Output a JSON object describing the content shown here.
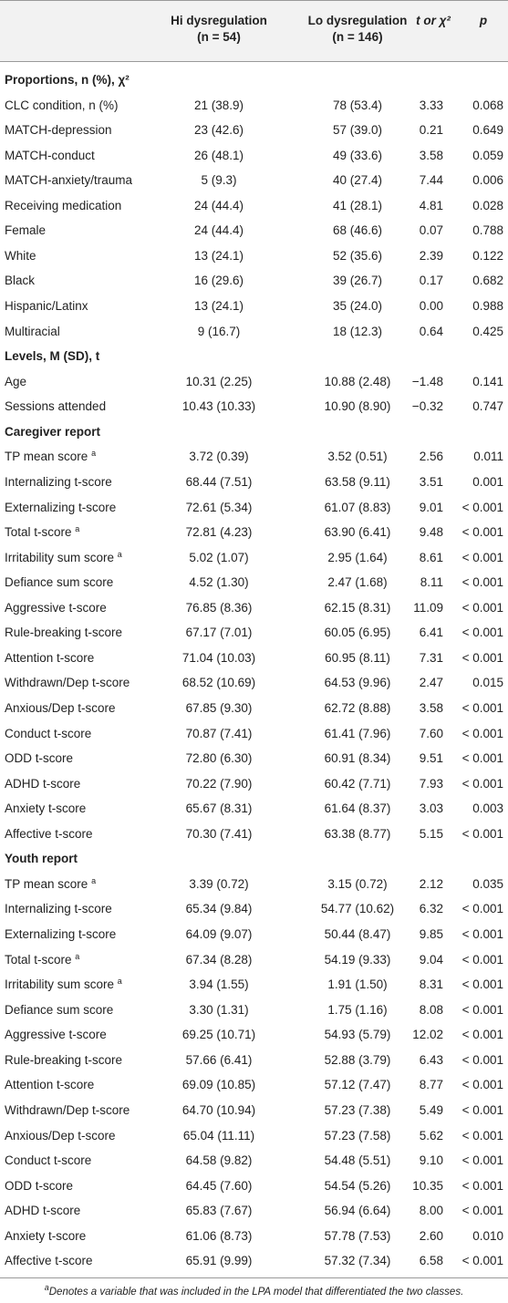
{
  "table": {
    "header": {
      "hi": {
        "line1": "Hi dysregulation",
        "line2": "(n = 54)"
      },
      "lo": {
        "line1": "Lo dysregulation",
        "line2": "(n = 146)"
      },
      "stat": "t or χ²",
      "p": "p"
    },
    "sections": [
      {
        "title": "Proportions, n (%), χ²",
        "rows": [
          {
            "label": "CLC condition, n (%)",
            "hi": "21 (38.9)",
            "lo": "78 (53.4)",
            "stat": "3.33",
            "p": "0.068"
          },
          {
            "label": "MATCH-depression",
            "hi": "23 (42.6)",
            "lo": "57 (39.0)",
            "stat": "0.21",
            "p": "0.649"
          },
          {
            "label": "MATCH-conduct",
            "hi": "26 (48.1)",
            "lo": "49 (33.6)",
            "stat": "3.58",
            "p": "0.059"
          },
          {
            "label": "MATCH-anxiety/trauma",
            "hi": "5 (9.3)",
            "lo": "40 (27.4)",
            "stat": "7.44",
            "p": "0.006"
          },
          {
            "label": "Receiving medication",
            "hi": "24 (44.4)",
            "lo": "41 (28.1)",
            "stat": "4.81",
            "p": "0.028"
          },
          {
            "label": "Female",
            "hi": "24 (44.4)",
            "lo": "68 (46.6)",
            "stat": "0.07",
            "p": "0.788"
          },
          {
            "label": "White",
            "hi": "13 (24.1)",
            "lo": "52 (35.6)",
            "stat": "2.39",
            "p": "0.122"
          },
          {
            "label": "Black",
            "hi": "16 (29.6)",
            "lo": "39 (26.7)",
            "stat": "0.17",
            "p": "0.682"
          },
          {
            "label": "Hispanic/Latinx",
            "hi": "13 (24.1)",
            "lo": "35 (24.0)",
            "stat": "0.00",
            "p": "0.988"
          },
          {
            "label": "Multiracial",
            "hi": "9 (16.7)",
            "lo": "18 (12.3)",
            "stat": "0.64",
            "p": "0.425"
          }
        ]
      },
      {
        "title": "Levels, M (SD), t",
        "rows": [
          {
            "label": "Age",
            "hi": "10.31 (2.25)",
            "lo": "10.88 (2.48)",
            "stat": "−1.48",
            "p": "0.141"
          },
          {
            "label": "Sessions attended",
            "hi": "10.43 (10.33)",
            "lo": "10.90 (8.90)",
            "stat": "−0.32",
            "p": "0.747"
          }
        ]
      },
      {
        "title": "Caregiver report",
        "rows": [
          {
            "label": "TP mean score",
            "note": "a",
            "hi": "3.72 (0.39)",
            "lo": "3.52 (0.51)",
            "stat": "2.56",
            "p": "0.011"
          },
          {
            "label": "Internalizing t-score",
            "hi": "68.44 (7.51)",
            "lo": "63.58 (9.11)",
            "stat": "3.51",
            "p": "0.001"
          },
          {
            "label": "Externalizing t-score",
            "hi": "72.61 (5.34)",
            "lo": "61.07 (8.83)",
            "stat": "9.01",
            "p": "< 0.001"
          },
          {
            "label": "Total t-score",
            "note": "a",
            "hi": "72.81 (4.23)",
            "lo": "63.90 (6.41)",
            "stat": "9.48",
            "p": "< 0.001"
          },
          {
            "label": "Irritability sum score",
            "note": "a",
            "hi": "5.02 (1.07)",
            "lo": "2.95 (1.64)",
            "stat": "8.61",
            "p": "< 0.001"
          },
          {
            "label": "Defiance sum score",
            "hi": "4.52 (1.30)",
            "lo": "2.47 (1.68)",
            "stat": "8.11",
            "p": "< 0.001"
          },
          {
            "label": "Aggressive t-score",
            "hi": "76.85 (8.36)",
            "lo": "62.15 (8.31)",
            "stat": "11.09",
            "p": "< 0.001"
          },
          {
            "label": "Rule-breaking t-score",
            "hi": "67.17 (7.01)",
            "lo": "60.05 (6.95)",
            "stat": "6.41",
            "p": "< 0.001"
          },
          {
            "label": "Attention t-score",
            "hi": "71.04 (10.03)",
            "lo": "60.95 (8.11)",
            "stat": "7.31",
            "p": "< 0.001"
          },
          {
            "label": "Withdrawn/Dep t-score",
            "hi": "68.52 (10.69)",
            "lo": "64.53 (9.96)",
            "stat": "2.47",
            "p": "0.015"
          },
          {
            "label": "Anxious/Dep t-score",
            "hi": "67.85 (9.30)",
            "lo": "62.72 (8.88)",
            "stat": "3.58",
            "p": "< 0.001"
          },
          {
            "label": "Conduct t-score",
            "hi": "70.87 (7.41)",
            "lo": "61.41 (7.96)",
            "stat": "7.60",
            "p": "< 0.001"
          },
          {
            "label": "ODD t-score",
            "hi": "72.80 (6.30)",
            "lo": "60.91 (8.34)",
            "stat": "9.51",
            "p": "< 0.001"
          },
          {
            "label": "ADHD t-score",
            "hi": "70.22 (7.90)",
            "lo": "60.42 (7.71)",
            "stat": "7.93",
            "p": "< 0.001"
          },
          {
            "label": "Anxiety t-score",
            "hi": "65.67 (8.31)",
            "lo": "61.64 (8.37)",
            "stat": "3.03",
            "p": "0.003"
          },
          {
            "label": "Affective t-score",
            "hi": "70.30 (7.41)",
            "lo": "63.38 (8.77)",
            "stat": "5.15",
            "p": "< 0.001"
          }
        ]
      },
      {
        "title": "Youth report",
        "rows": [
          {
            "label": "TP mean score",
            "note": "a",
            "hi": "3.39 (0.72)",
            "lo": "3.15 (0.72)",
            "stat": "2.12",
            "p": "0.035"
          },
          {
            "label": "Internalizing t-score",
            "hi": "65.34 (9.84)",
            "lo": "54.77 (10.62)",
            "stat": "6.32",
            "p": "< 0.001"
          },
          {
            "label": "Externalizing t-score",
            "hi": "64.09 (9.07)",
            "lo": "50.44 (8.47)",
            "stat": "9.85",
            "p": "< 0.001"
          },
          {
            "label": "Total t-score",
            "note": "a",
            "hi": "67.34 (8.28)",
            "lo": "54.19 (9.33)",
            "stat": "9.04",
            "p": "< 0.001"
          },
          {
            "label": "Irritability sum score",
            "note": "a",
            "hi": "3.94 (1.55)",
            "lo": "1.91 (1.50)",
            "stat": "8.31",
            "p": "< 0.001"
          },
          {
            "label": "Defiance sum score",
            "hi": "3.30 (1.31)",
            "lo": "1.75 (1.16)",
            "stat": "8.08",
            "p": "< 0.001"
          },
          {
            "label": "Aggressive t-score",
            "hi": "69.25 (10.71)",
            "lo": "54.93 (5.79)",
            "stat": "12.02",
            "p": "< 0.001"
          },
          {
            "label": "Rule-breaking t-score",
            "hi": "57.66 (6.41)",
            "lo": "52.88 (3.79)",
            "stat": "6.43",
            "p": "< 0.001"
          },
          {
            "label": "Attention t-score",
            "hi": "69.09 (10.85)",
            "lo": "57.12 (7.47)",
            "stat": "8.77",
            "p": "< 0.001"
          },
          {
            "label": "Withdrawn/Dep t-score",
            "hi": "64.70 (10.94)",
            "lo": "57.23 (7.38)",
            "stat": "5.49",
            "p": "< 0.001"
          },
          {
            "label": "Anxious/Dep t-score",
            "hi": "65.04 (11.11)",
            "lo": "57.23 (7.58)",
            "stat": "5.62",
            "p": "< 0.001"
          },
          {
            "label": "Conduct t-score",
            "hi": "64.58 (9.82)",
            "lo": "54.48 (5.51)",
            "stat": "9.10",
            "p": "< 0.001"
          },
          {
            "label": "ODD t-score",
            "hi": "64.45 (7.60)",
            "lo": "54.54 (5.26)",
            "stat": "10.35",
            "p": "< 0.001"
          },
          {
            "label": "ADHD t-score",
            "hi": "65.83 (7.67)",
            "lo": "56.94 (6.64)",
            "stat": "8.00",
            "p": "< 0.001"
          },
          {
            "label": "Anxiety t-score",
            "hi": "61.06 (8.73)",
            "lo": "57.78 (7.53)",
            "stat": "2.60",
            "p": "0.010"
          },
          {
            "label": "Affective t-score",
            "hi": "65.91 (9.99)",
            "lo": "57.32 (7.34)",
            "stat": "6.58",
            "p": "< 0.001"
          }
        ]
      }
    ],
    "footnote": {
      "mark": "a",
      "text": "Denotes a variable that was included in the LPA model that differentiated the two classes."
    }
  }
}
